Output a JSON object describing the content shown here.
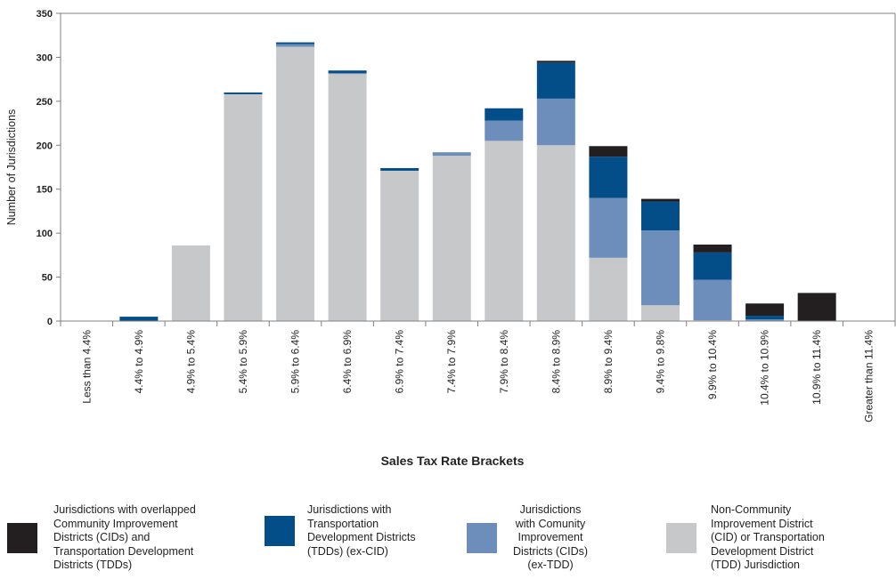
{
  "chart_data": {
    "type": "bar",
    "stacked": true,
    "xlabel": "Sales Tax Rate Brackets",
    "ylabel": "Number of Jurisdictions",
    "ylim": [
      0,
      350
    ],
    "yticks": [
      "0",
      "50",
      "100",
      "150",
      "200",
      "250",
      "300",
      "350"
    ],
    "grid": false,
    "legend_position": "bottom",
    "categories": [
      "Less than 4.4%",
      "4.4% to 4.9%",
      "4.9% to 5.4%",
      "5.4% to 5.9%",
      "5.9% to 6.4%",
      "6.4% to 6.9%",
      "6.9% to 7.4%",
      "7.4% to 7.9%",
      "7.9% to 8.4%",
      "8.4% to 8.9%",
      "8.9% to 9.4%",
      "9.4% to 9.8%",
      "9.9% to 10.4%",
      "10.4% to 10.9%",
      "10.9% to 11.4%",
      "Greater than 11.4%"
    ],
    "series": [
      {
        "name": "Non-Community Improvement District (CID) or Transportation Development District (TDD) Jurisdiction",
        "color": "#c7c8ca",
        "values": [
          0,
          0,
          86,
          258,
          312,
          281,
          171,
          188,
          205,
          200,
          72,
          18,
          1,
          0,
          0,
          0
        ]
      },
      {
        "name": "Jurisdictions with Comunity Improvement Districts (CIDs) (ex-TDD)",
        "color": "#6d8dba",
        "values": [
          0,
          0,
          0,
          0,
          3,
          1,
          0,
          4,
          23,
          53,
          68,
          85,
          46,
          2,
          0,
          0
        ]
      },
      {
        "name": "Jurisdictions with Transportation Development Districts (TDDs) (ex-CID)",
        "color": "#034e89",
        "values": [
          0,
          5,
          0,
          2,
          2,
          3,
          3,
          0,
          14,
          41,
          47,
          33,
          31,
          4,
          0,
          0
        ]
      },
      {
        "name": "Jurisdictions with overlapped Community Improvement Districts (CIDs) and Transportation Development Districts (TDDs)",
        "color": "#231f20",
        "values": [
          0,
          0,
          0,
          0,
          0,
          0,
          0,
          0,
          0,
          2,
          12,
          3,
          9,
          14,
          32,
          0
        ]
      }
    ]
  },
  "legend": [
    {
      "text": "Jurisdictions with overlapped Community Improvement Districts (CIDs) and Transportation Development Districts (TDDs)",
      "lines": [
        "Jurisdictions with overlapped",
        "Community Improvement",
        "Districts (CIDs) and",
        "Transportation Development",
        "Districts (TDDs)"
      ],
      "color": "#231f20"
    },
    {
      "text": "Jurisdictions with Transportation Development Districts (TDDs) (ex-CID)",
      "lines": [
        "Jurisdictions with",
        "Transportation",
        "Development Districts",
        "(TDDs) (ex-CID)"
      ],
      "color": "#034e89"
    },
    {
      "text": "Jurisdictions with Comunity Improvement Districts (CIDs) (ex-TDD)",
      "lines": [
        "Jurisdictions",
        "with Comunity",
        "Improvement",
        "Districts (CIDs)",
        "(ex-TDD)"
      ],
      "color": "#6d8dba"
    },
    {
      "text": "Non-Community Improvement District (CID) or Transportation Development District (TDD) Jurisdiction",
      "lines": [
        "Non-Community",
        "Improvement District",
        "(CID) or Transportation",
        "Development District",
        "(TDD) Jurisdiction"
      ],
      "color": "#c7c8ca"
    }
  ]
}
